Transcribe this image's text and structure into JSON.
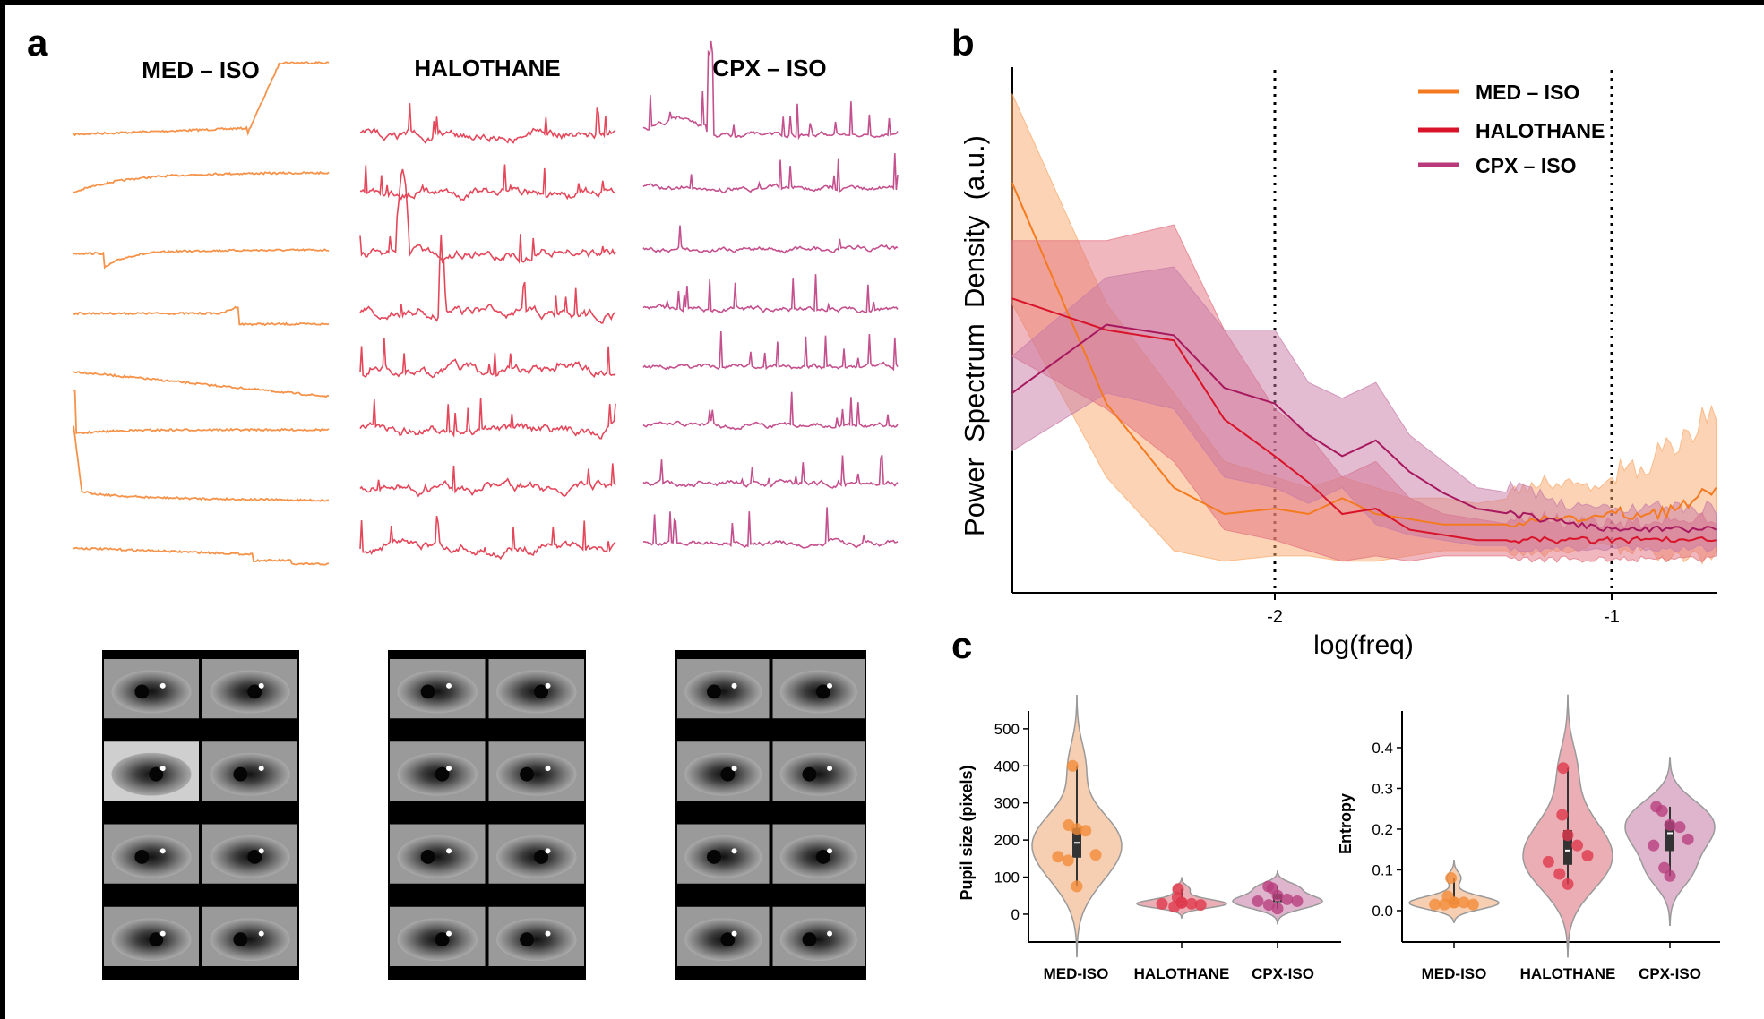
{
  "panels": {
    "a": {
      "label": "a",
      "columns": [
        {
          "title": "MED – ISO",
          "color": "#f5934a"
        },
        {
          "title": "HALOTHANE",
          "color": "#e4475a"
        },
        {
          "title": "CPX – ISO",
          "color": "#c4508e"
        }
      ]
    },
    "b": {
      "label": "b"
    },
    "c": {
      "label": "c"
    }
  },
  "chart_data": [
    {
      "type": "line",
      "panel": "b",
      "xlabel": "log(freq)",
      "ylabel": "Power  Spectrum  Density  (a.u.)",
      "xlim": [
        -2.78,
        -0.69
      ],
      "ylim": [
        0,
        1
      ],
      "xticks": [
        -2,
        -1
      ],
      "xtick_labels": [
        "-2",
        "-1"
      ],
      "vlines": [
        -2,
        -1
      ],
      "legend_position": "top-right",
      "x": [
        -2.78,
        -2.5,
        -2.3,
        -2.15,
        -2.0,
        -1.9,
        -1.8,
        -1.7,
        -1.6,
        -1.5,
        -1.4,
        -1.3,
        -1.2,
        -1.1,
        -1.0,
        -0.9,
        -0.8,
        -0.69
      ],
      "series": [
        {
          "name": "MED – ISO",
          "color": "#f47a20",
          "fill": "#f9a86a",
          "values": [
            0.78,
            0.36,
            0.2,
            0.15,
            0.16,
            0.15,
            0.18,
            0.15,
            0.14,
            0.13,
            0.13,
            0.13,
            0.14,
            0.14,
            0.15,
            0.15,
            0.16,
            0.2
          ],
          "upper": [
            0.95,
            0.55,
            0.38,
            0.25,
            0.22,
            0.2,
            0.22,
            0.2,
            0.18,
            0.18,
            0.17,
            0.18,
            0.2,
            0.19,
            0.2,
            0.22,
            0.26,
            0.33
          ],
          "lower": [
            0.55,
            0.22,
            0.08,
            0.06,
            0.07,
            0.07,
            0.06,
            0.06,
            0.07,
            0.08,
            0.08,
            0.08,
            0.08,
            0.09,
            0.1,
            0.09,
            0.08,
            0.08
          ]
        },
        {
          "name": "HALOTHANE",
          "color": "#d9132a",
          "fill": "#e2707e",
          "values": [
            0.56,
            0.5,
            0.48,
            0.33,
            0.26,
            0.21,
            0.15,
            0.16,
            0.12,
            0.11,
            0.1,
            0.1,
            0.1,
            0.1,
            0.1,
            0.1,
            0.1,
            0.1
          ],
          "upper": [
            0.67,
            0.67,
            0.7,
            0.5,
            0.35,
            0.3,
            0.22,
            0.25,
            0.18,
            0.15,
            0.14,
            0.13,
            0.13,
            0.12,
            0.12,
            0.12,
            0.13,
            0.13
          ],
          "lower": [
            0.45,
            0.35,
            0.25,
            0.12,
            0.1,
            0.08,
            0.06,
            0.07,
            0.06,
            0.07,
            0.07,
            0.07,
            0.07,
            0.07,
            0.07,
            0.07,
            0.07,
            0.07
          ]
        },
        {
          "name": "CPX – ISO",
          "color": "#a8185e",
          "fill": "#c77aa6",
          "values": [
            0.38,
            0.51,
            0.49,
            0.39,
            0.36,
            0.3,
            0.26,
            0.29,
            0.23,
            0.19,
            0.16,
            0.15,
            0.14,
            0.13,
            0.12,
            0.12,
            0.12,
            0.12
          ],
          "upper": [
            0.45,
            0.6,
            0.62,
            0.5,
            0.5,
            0.4,
            0.37,
            0.4,
            0.3,
            0.25,
            0.2,
            0.19,
            0.17,
            0.15,
            0.15,
            0.15,
            0.15,
            0.15
          ],
          "lower": [
            0.27,
            0.38,
            0.35,
            0.22,
            0.2,
            0.17,
            0.2,
            0.13,
            0.11,
            0.1,
            0.09,
            0.09,
            0.09,
            0.09,
            0.09,
            0.09,
            0.09,
            0.09
          ]
        }
      ]
    },
    {
      "type": "violin",
      "panel": "c-left",
      "ylabel": "Pupil size (pixels)",
      "ylim": [
        -75,
        548
      ],
      "yticks": [
        0,
        100,
        200,
        300,
        400,
        500
      ],
      "categories": [
        "MED-ISO",
        "HALOTHANE",
        "CPX-ISO"
      ],
      "series": [
        {
          "category": "MED-ISO",
          "color": "#f28c38",
          "fill": "#f5c6a5",
          "values": [
            400,
            240,
            230,
            225,
            160,
            155,
            145,
            75
          ]
        },
        {
          "category": "HALOTHANE",
          "color": "#e03a4e",
          "fill": "#e8a0a8",
          "values": [
            68,
            45,
            30,
            28,
            25,
            28,
            20,
            32
          ]
        },
        {
          "category": "CPX-ISO",
          "color": "#b8407e",
          "fill": "#d9a8c4",
          "values": [
            75,
            70,
            50,
            40,
            35,
            35,
            25,
            15
          ]
        }
      ]
    },
    {
      "type": "violin",
      "panel": "c-right",
      "ylabel": "Entropy",
      "ylim": [
        -0.077,
        0.49
      ],
      "yticks": [
        0.0,
        0.1,
        0.2,
        0.3,
        0.4
      ],
      "ytick_labels": [
        "0.0",
        "0.1",
        "0.2",
        "0.3",
        "0.4"
      ],
      "categories": [
        "MED-ISO",
        "HALOTHANE",
        "CPX-ISO"
      ],
      "series": [
        {
          "category": "MED-ISO",
          "color": "#f28c38",
          "fill": "#f5c6a5",
          "values": [
            0.08,
            0.035,
            0.02,
            0.02,
            0.015,
            0.015,
            0.015,
            0.02
          ]
        },
        {
          "category": "HALOTHANE",
          "color": "#e03a4e",
          "fill": "#e8a0a8",
          "values": [
            0.35,
            0.235,
            0.185,
            0.16,
            0.135,
            0.12,
            0.09,
            0.065
          ]
        },
        {
          "category": "CPX-ISO",
          "color": "#b8407e",
          "fill": "#d9a8c4",
          "values": [
            0.255,
            0.245,
            0.21,
            0.205,
            0.175,
            0.16,
            0.105,
            0.085
          ]
        }
      ]
    }
  ]
}
